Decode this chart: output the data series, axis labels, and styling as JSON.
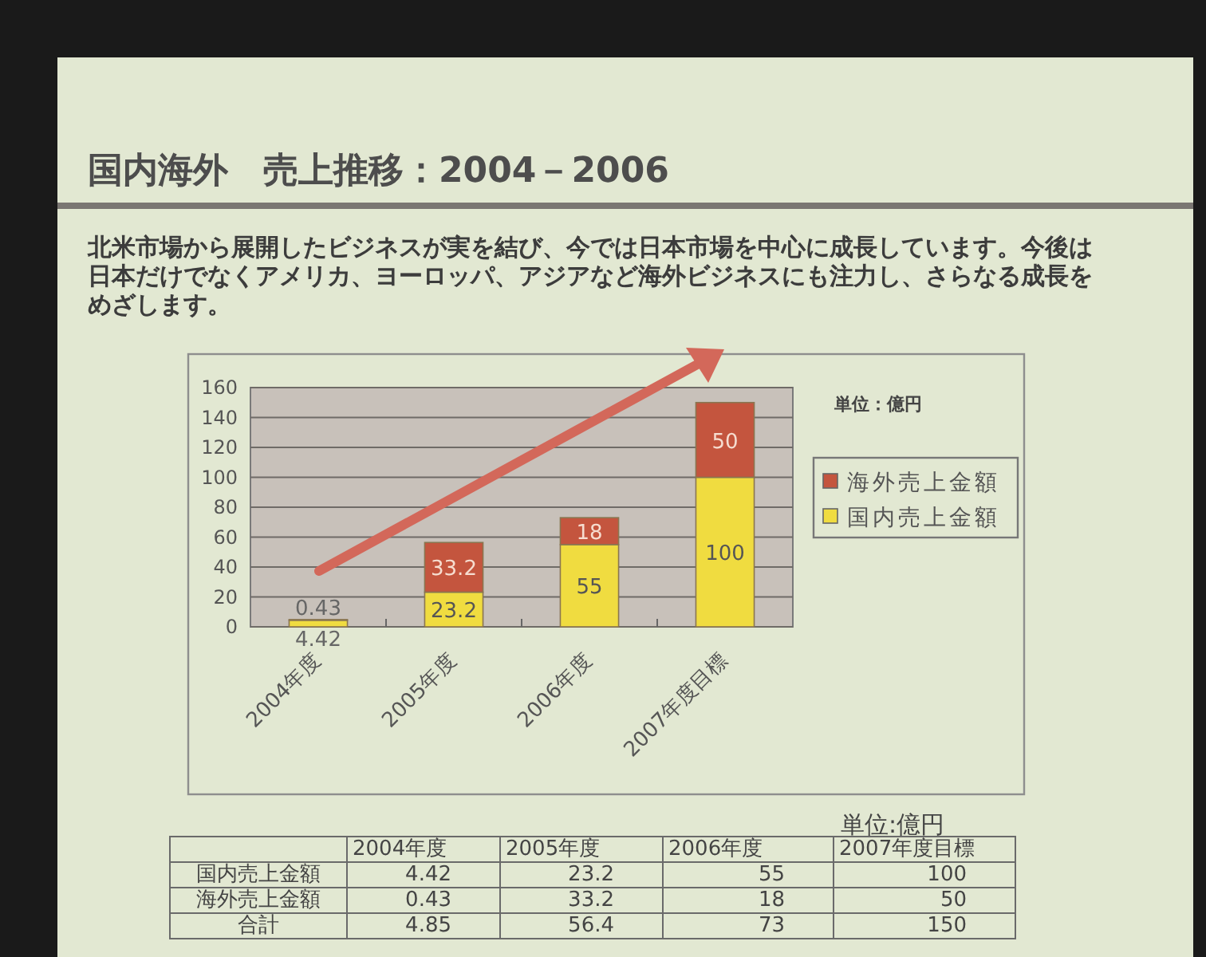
{
  "chart_data": [
    {
      "type": "bar",
      "stacked": true,
      "title": "国内海外　売上推移：2004－2006",
      "subtitle": "北米市場から展開したビジネスが実を結び、今では日本市場を中心に成長しています。今後は日本だけでなくアメリカ、ヨーロッパ、アジアなど海外ビジネスにも注力し、さらなる成長をめざします。",
      "categories": [
        "2004年度",
        "2005年度",
        "2006年度",
        "2007年度目標"
      ],
      "series": [
        {
          "name": "国内売上金額",
          "color": "#f0dc40",
          "values": [
            4.42,
            23.2,
            55,
            100
          ]
        },
        {
          "name": "海外売上金額",
          "color": "#c4553e",
          "values": [
            0.43,
            33.2,
            18,
            50
          ]
        }
      ],
      "ylim": [
        0,
        160
      ],
      "yticks": [
        0,
        20,
        40,
        60,
        80,
        100,
        120,
        140,
        160
      ],
      "grid": "y",
      "legend": "right",
      "data_labels": true,
      "annotations": [
        "単位：億円"
      ]
    },
    {
      "type": "other",
      "categories": [
        "2004年度",
        "2005年度",
        "2006年度",
        "2007年度目標"
      ],
      "series": [
        {
          "name": "国内売上金額",
          "values": [
            4.42,
            23.2,
            55,
            100
          ]
        },
        {
          "name": "海外売上金額",
          "values": [
            0.43,
            33.2,
            18,
            50
          ]
        },
        {
          "name": "合計",
          "values": [
            4.85,
            56.4,
            73,
            150
          ]
        }
      ],
      "data_labels": true,
      "annotations": [
        "単位:億円"
      ]
    }
  ]
}
